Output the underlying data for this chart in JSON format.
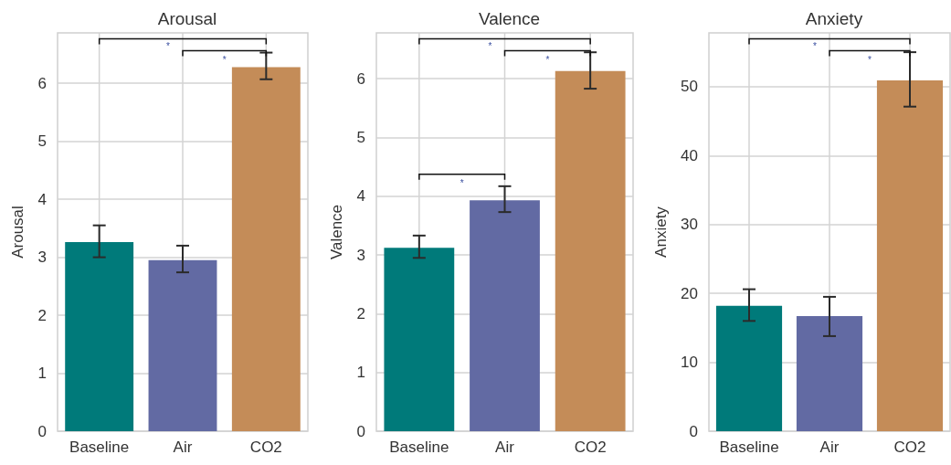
{
  "chart_data": [
    {
      "type": "bar",
      "title": "Arousal",
      "ylabel": "Arousal",
      "categories": [
        "Baseline",
        "Air",
        "CO2"
      ],
      "values": [
        3.26,
        2.95,
        6.28
      ],
      "colors": [
        "#007a7a",
        "#626aa3",
        "#c48c58"
      ],
      "errors": [
        [
          3.0,
          3.55
        ],
        [
          2.74,
          3.2
        ],
        [
          6.07,
          6.53
        ]
      ],
      "ylim": [
        0,
        6.87
      ],
      "yticks": [
        0,
        1,
        2,
        3,
        4,
        5,
        6
      ],
      "grid": true,
      "annotations": [
        "*",
        "*"
      ]
    },
    {
      "type": "bar",
      "title": "Valence",
      "ylabel": "Valence",
      "categories": [
        "Baseline",
        "Air",
        "CO2"
      ],
      "values": [
        3.12,
        3.93,
        6.13
      ],
      "colors": [
        "#007a7a",
        "#626aa3",
        "#c48c58"
      ],
      "errors": [
        [
          2.95,
          3.33
        ],
        [
          3.73,
          4.17
        ],
        [
          5.83,
          6.45
        ]
      ],
      "ylim": [
        0,
        6.78
      ],
      "yticks": [
        0,
        1,
        2,
        3,
        4,
        5,
        6
      ],
      "grid": true,
      "annotations": [
        "*",
        "*",
        "*"
      ]
    },
    {
      "type": "bar",
      "title": "Anxiety",
      "ylabel": "Anxiety",
      "categories": [
        "Baseline",
        "Air",
        "CO2"
      ],
      "values": [
        18.2,
        16.7,
        50.9
      ],
      "colors": [
        "#007a7a",
        "#626aa3",
        "#c48c58"
      ],
      "errors": [
        [
          16.0,
          20.6
        ],
        [
          13.8,
          19.5
        ],
        [
          47.1,
          55.0
        ]
      ],
      "ylim": [
        0,
        57.8
      ],
      "yticks": [
        0,
        10,
        20,
        30,
        40,
        50
      ],
      "grid": true,
      "annotations": [
        "*",
        "*"
      ]
    }
  ]
}
